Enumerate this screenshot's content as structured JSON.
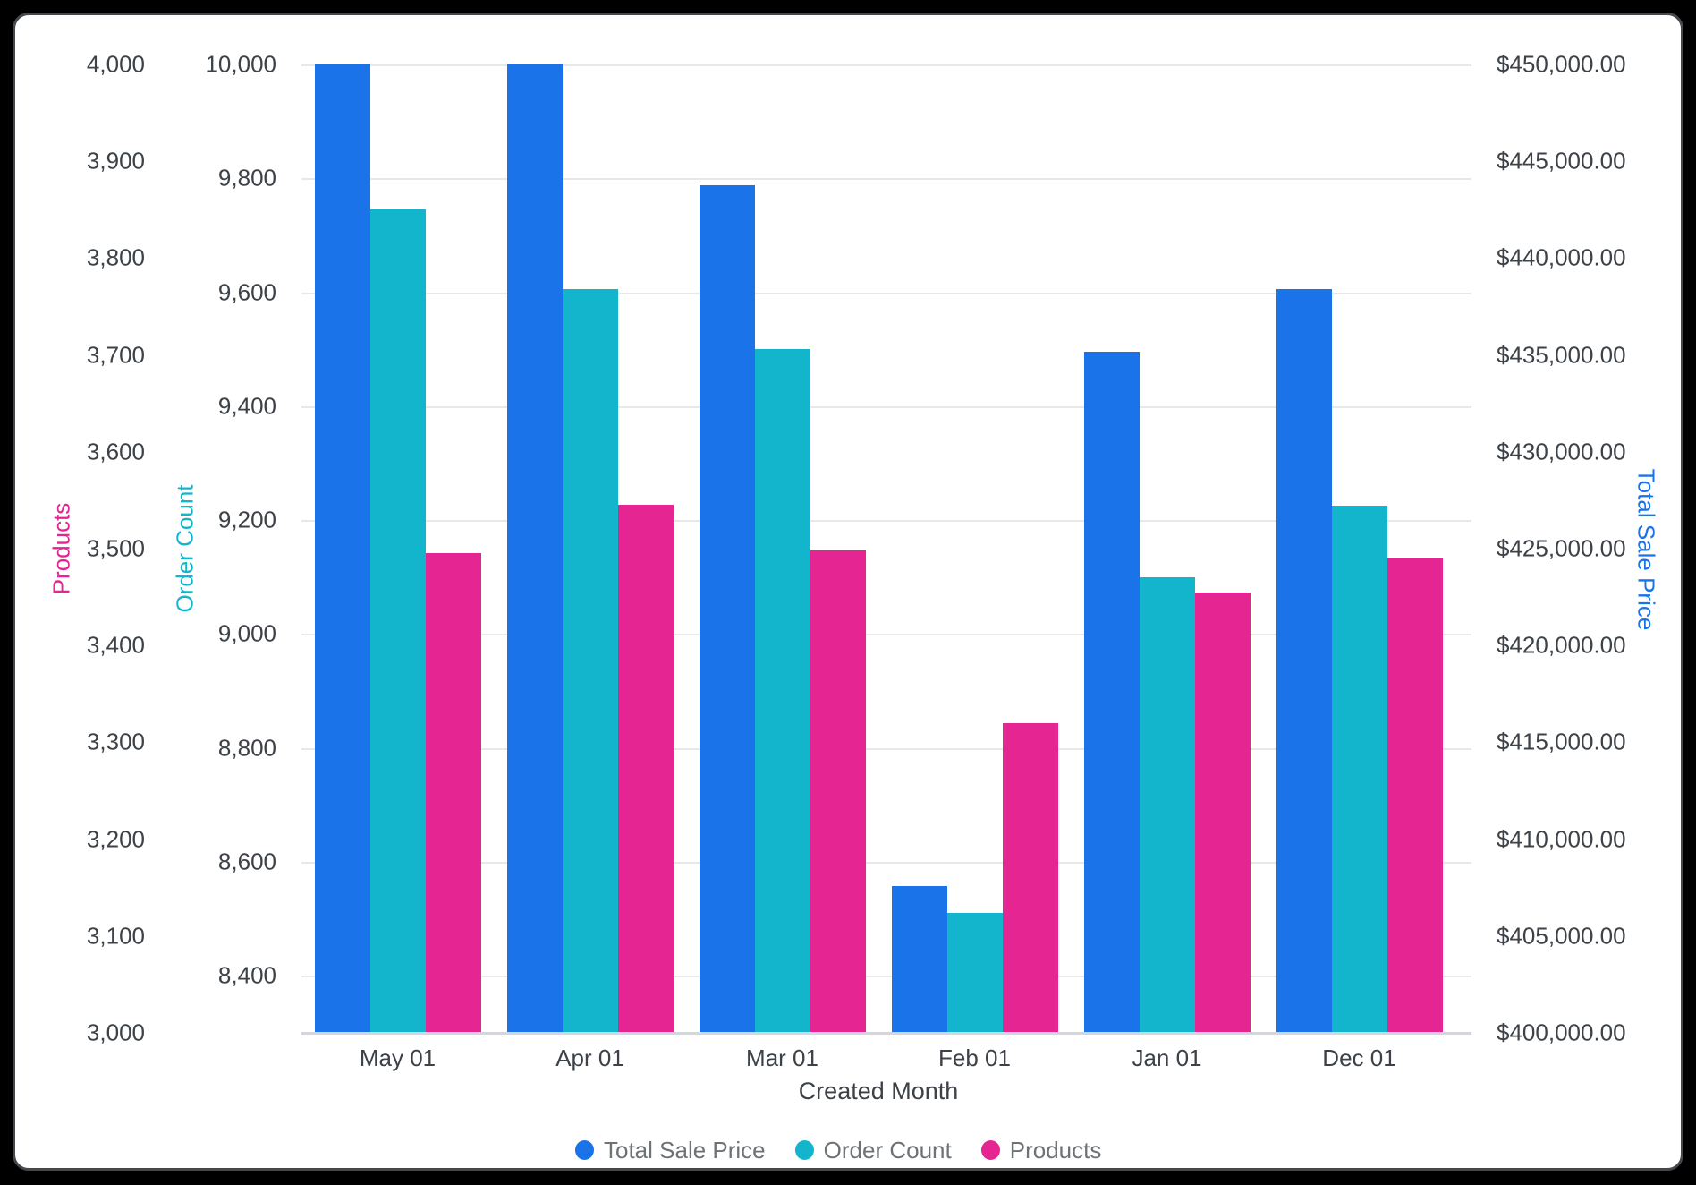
{
  "window": {
    "background": "#000000",
    "panel_background": "#ffffff",
    "panel_border": "#45494d"
  },
  "chart_data": {
    "type": "bar",
    "title": "",
    "xlabel": "Created Month",
    "grid": "on",
    "legend_position": "bottom",
    "categories": [
      "May 01",
      "Apr 01",
      "Mar 01",
      "Feb 01",
      "Jan 01",
      "Dec 01"
    ],
    "series": [
      {
        "name": "Total Sale Price",
        "axis": "price",
        "color": "#1A73E8",
        "values": [
          450000,
          450000,
          443750,
          407600,
          435150,
          438400
        ]
      },
      {
        "name": "Order Count",
        "axis": "order",
        "color": "#12B5CB",
        "values": [
          9745,
          9605,
          9500,
          8510,
          9100,
          9225
        ]
      },
      {
        "name": "Products",
        "axis": "products",
        "color": "#E52592",
        "values": [
          3495,
          3545,
          3498,
          3320,
          3455,
          3490
        ]
      }
    ],
    "axes": {
      "products": {
        "title": "Products",
        "color": "#E52592",
        "side": "left",
        "min": 3000,
        "max": 4000,
        "ticks": [
          {
            "value": 4000,
            "label": "4,000"
          },
          {
            "value": 3900,
            "label": "3,900"
          },
          {
            "value": 3800,
            "label": "3,800"
          },
          {
            "value": 3700,
            "label": "3,700"
          },
          {
            "value": 3600,
            "label": "3,600"
          },
          {
            "value": 3500,
            "label": "3,500"
          },
          {
            "value": 3400,
            "label": "3,400"
          },
          {
            "value": 3300,
            "label": "3,300"
          },
          {
            "value": 3200,
            "label": "3,200"
          },
          {
            "value": 3100,
            "label": "3,100"
          },
          {
            "value": 3000,
            "label": "3,000"
          }
        ]
      },
      "order": {
        "title": "Order Count",
        "color": "#12B5CB",
        "side": "left",
        "min": 8300,
        "max": 10000,
        "gridlines": true,
        "ticks": [
          {
            "value": 10000,
            "label": "10,000"
          },
          {
            "value": 9800,
            "label": "9,800"
          },
          {
            "value": 9600,
            "label": "9,600"
          },
          {
            "value": 9400,
            "label": "9,400"
          },
          {
            "value": 9200,
            "label": "9,200"
          },
          {
            "value": 9000,
            "label": "9,000"
          },
          {
            "value": 8800,
            "label": "8,800"
          },
          {
            "value": 8600,
            "label": "8,600"
          },
          {
            "value": 8400,
            "label": "8,400"
          }
        ]
      },
      "price": {
        "title": "Total Sale Price",
        "color": "#1A73E8",
        "side": "right",
        "min": 400000,
        "max": 450000,
        "ticks": [
          {
            "value": 450000,
            "label": "$450,000.00"
          },
          {
            "value": 445000,
            "label": "$445,000.00"
          },
          {
            "value": 440000,
            "label": "$440,000.00"
          },
          {
            "value": 435000,
            "label": "$435,000.00"
          },
          {
            "value": 430000,
            "label": "$430,000.00"
          },
          {
            "value": 425000,
            "label": "$425,000.00"
          },
          {
            "value": 420000,
            "label": "$420,000.00"
          },
          {
            "value": 415000,
            "label": "$415,000.00"
          },
          {
            "value": 410000,
            "label": "$410,000.00"
          },
          {
            "value": 405000,
            "label": "$405,000.00"
          },
          {
            "value": 400000,
            "label": "$400,000.00"
          }
        ]
      }
    }
  }
}
